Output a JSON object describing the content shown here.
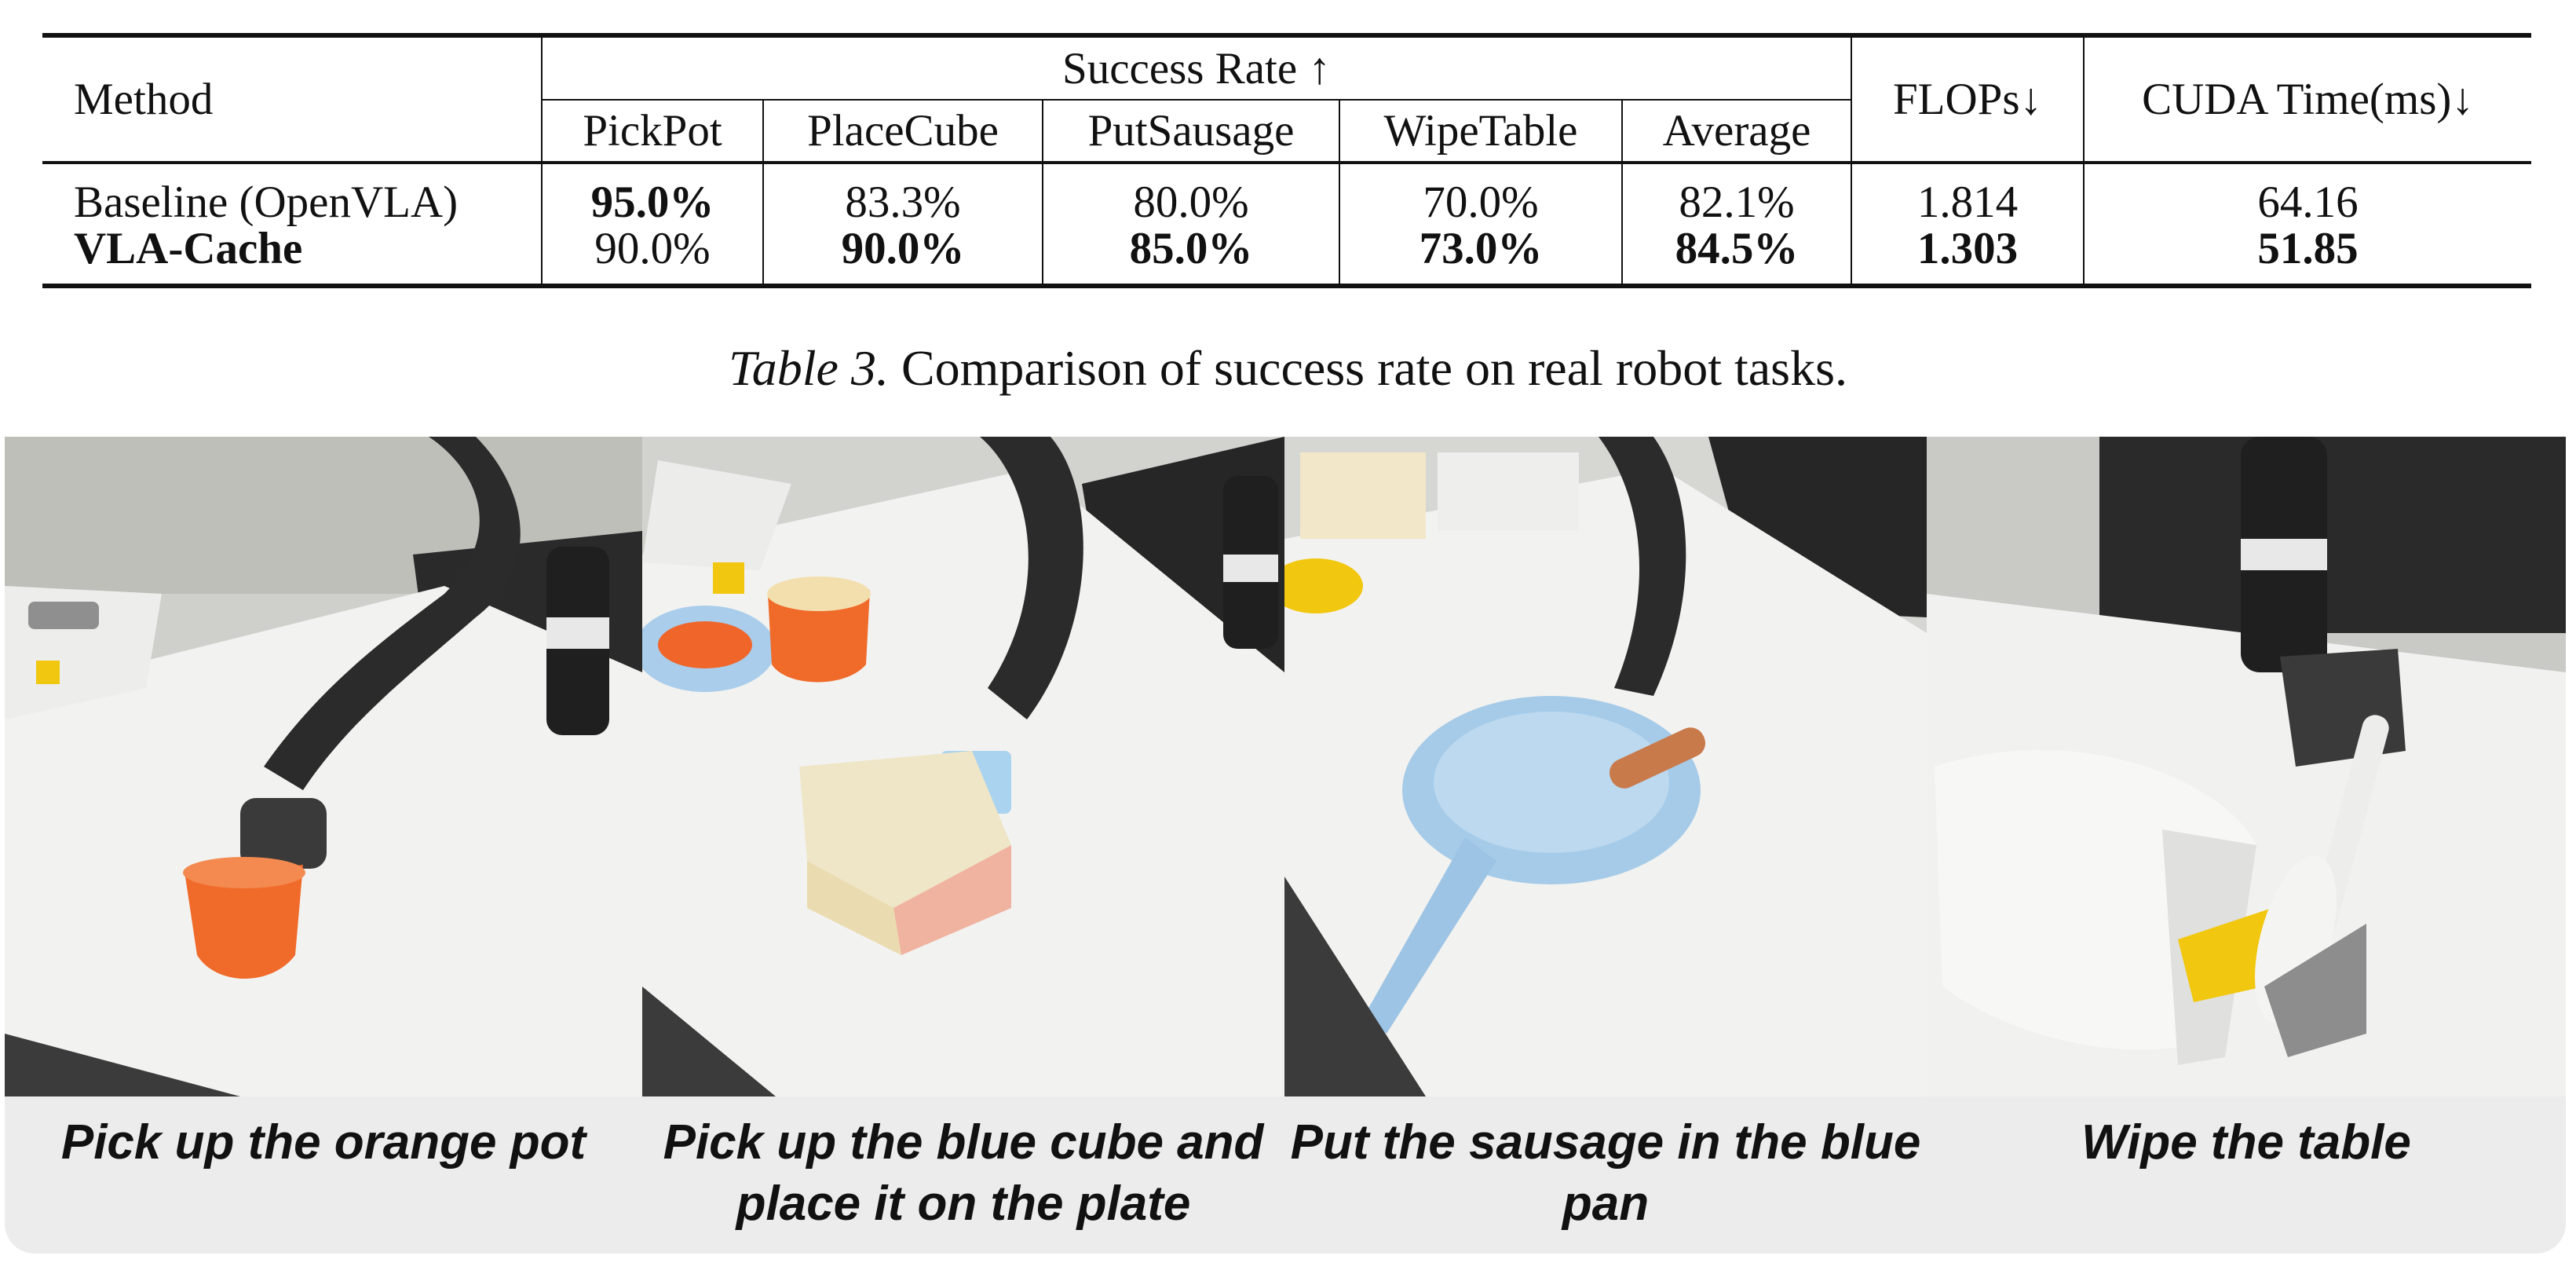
{
  "table": {
    "method_header": "Method",
    "success_header": "Success Rate ↑",
    "task_headers": [
      "PickPot",
      "PlaceCube",
      "PutSausage",
      "WipeTable",
      "Average"
    ],
    "flops_header": "FLOPs↓",
    "cuda_header": "CUDA Time(ms)↓",
    "rows": [
      {
        "method": "Baseline (OpenVLA)",
        "pickpot": "95.0%",
        "placecube": "83.3%",
        "putsausage": "80.0%",
        "wipetable": "70.0%",
        "average": "82.1%",
        "flops": "1.814",
        "cuda": "64.16"
      },
      {
        "method": "VLA-Cache",
        "pickpot": "90.0%",
        "placecube": "90.0%",
        "putsausage": "85.0%",
        "wipetable": "73.0%",
        "average": "84.5%",
        "flops": "1.303",
        "cuda": "51.85"
      }
    ]
  },
  "caption": {
    "label": "Table 3.",
    "text": " Comparison of success rate on real robot tasks."
  },
  "figure": {
    "panels": [
      {
        "caption": "Pick up the orange pot"
      },
      {
        "caption": "Pick up the blue cube and place it on the plate"
      },
      {
        "caption": "Put the sausage in the blue pan"
      },
      {
        "caption": "Wipe the table"
      }
    ],
    "colors": {
      "table_surface": "#f2f2f0",
      "robot": "#2b2b2b",
      "orange": "#f06a2a",
      "blue": "#9cc8e8",
      "yellow": "#f2c70f",
      "caption_band": "#ececec"
    }
  }
}
